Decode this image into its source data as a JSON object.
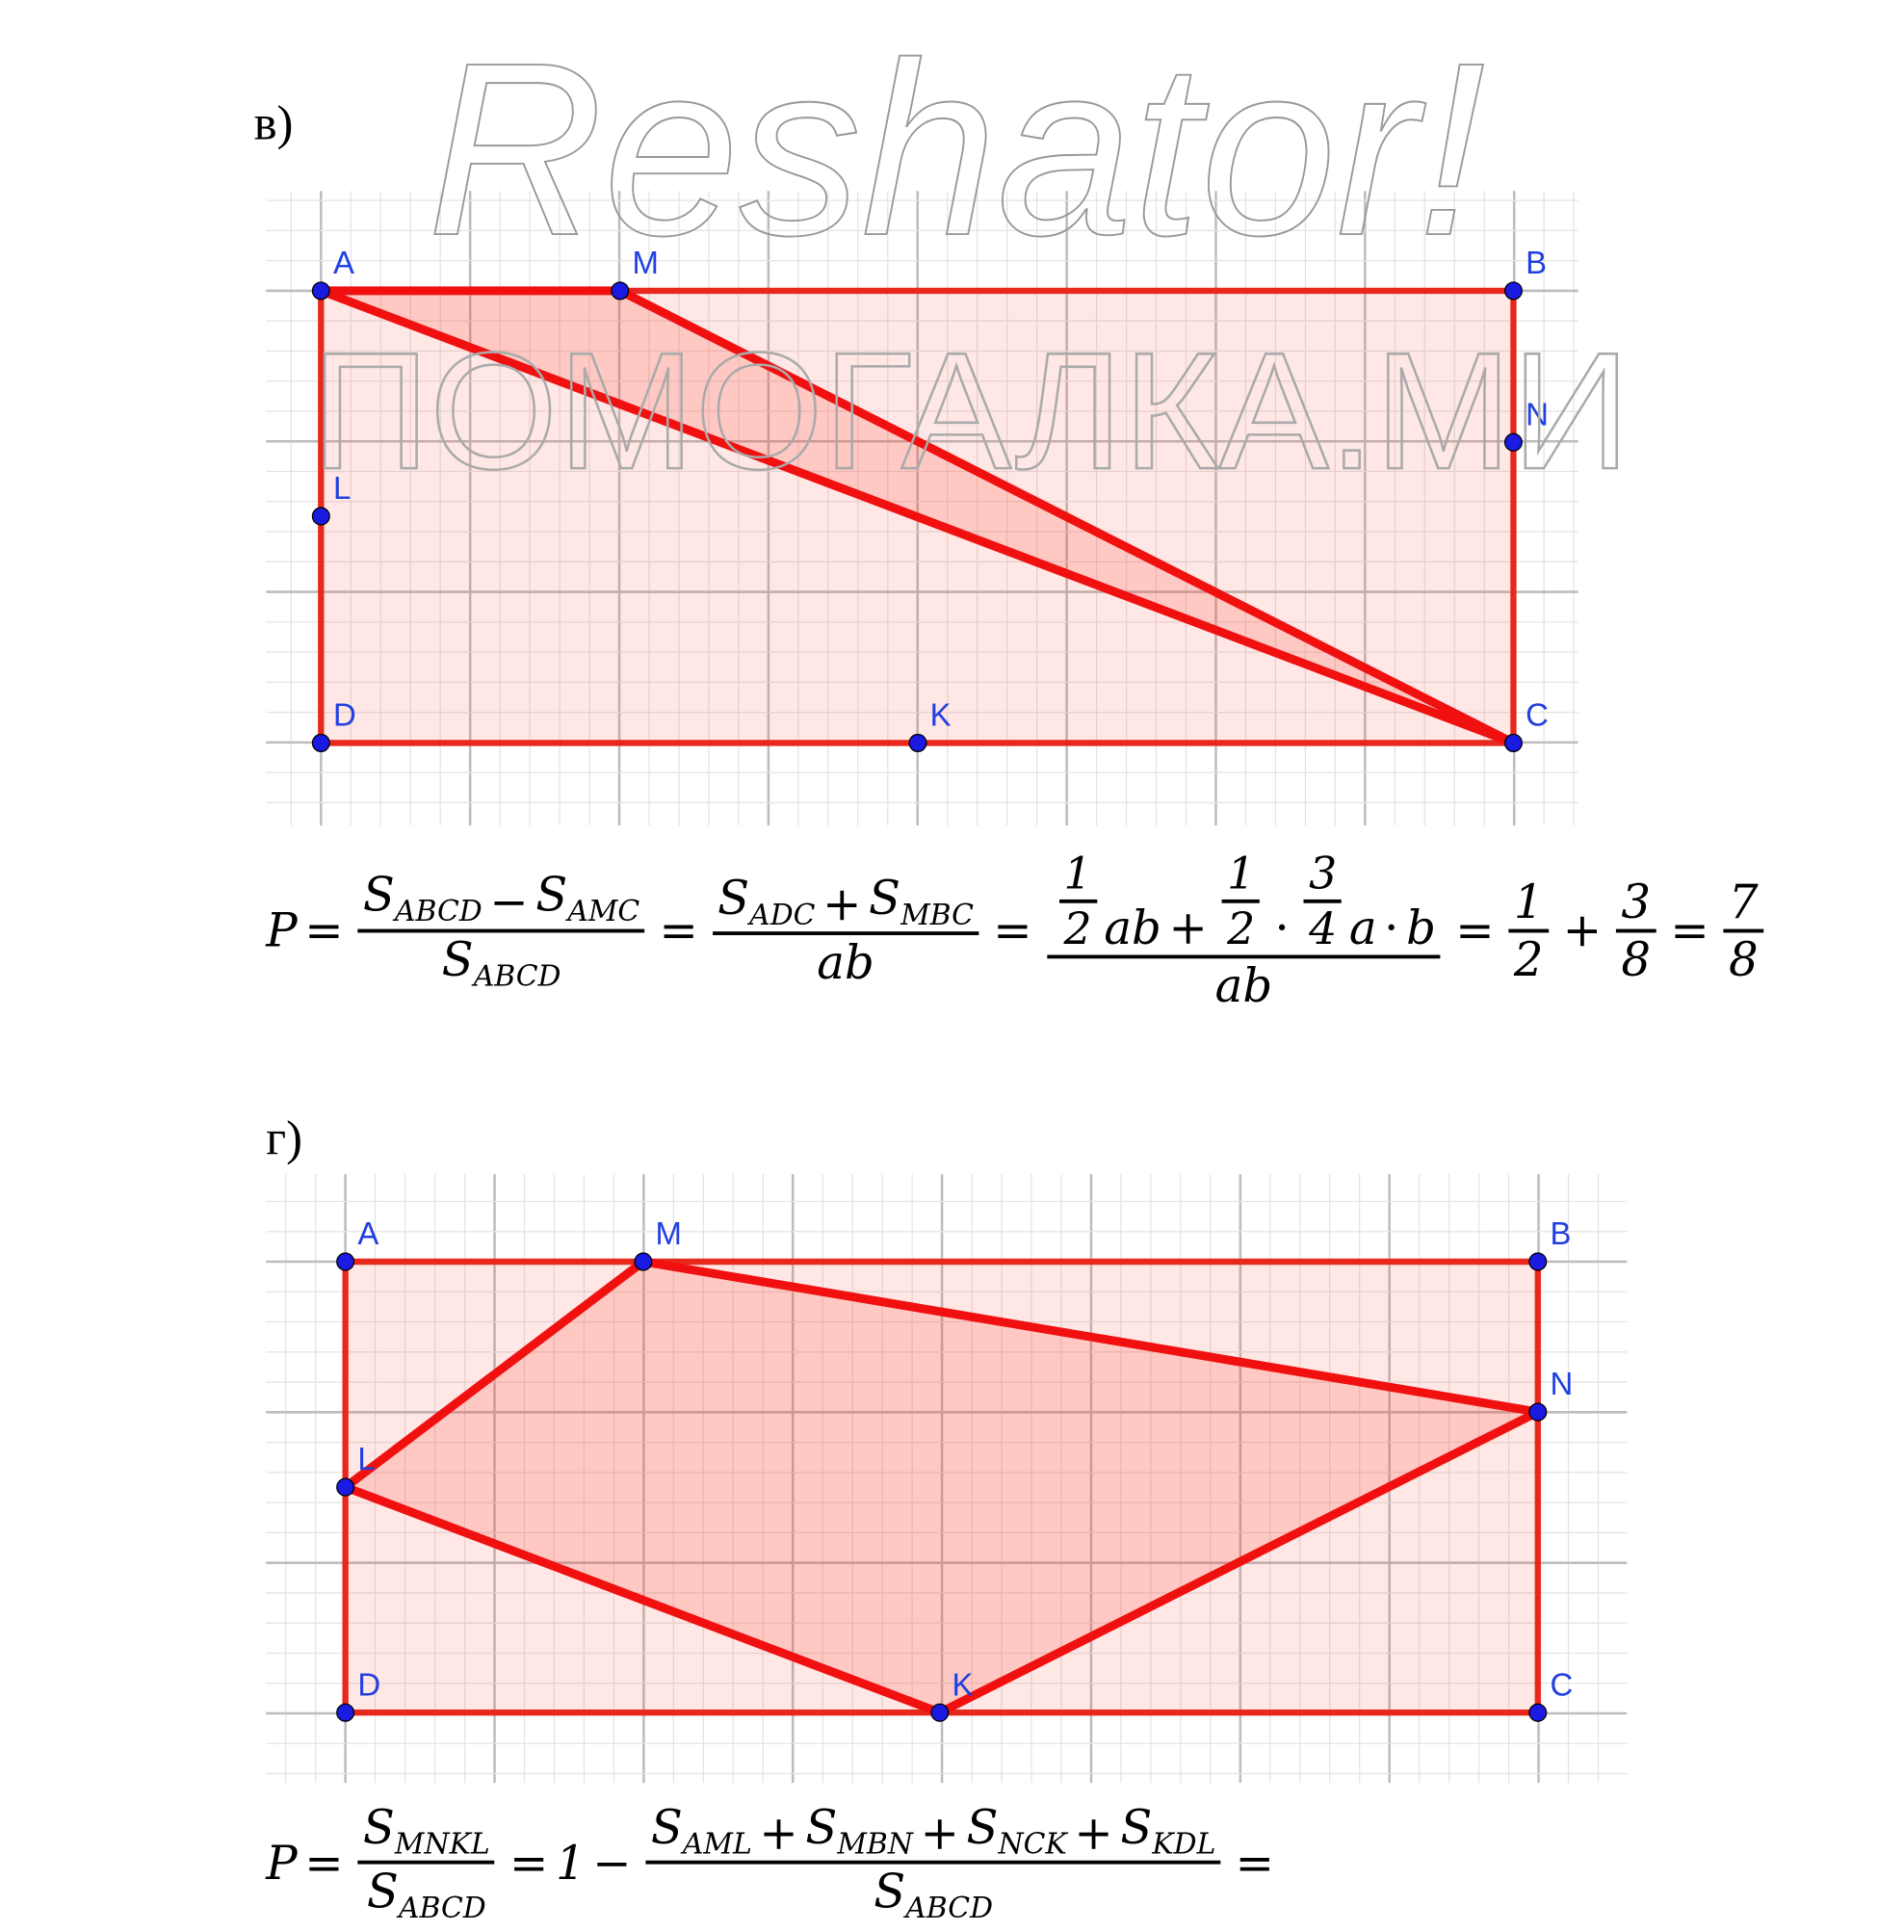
{
  "watermarks": [
    "Reshator!",
    "ПОМОГАЛКА.МИ"
  ],
  "sections": [
    {
      "label": "в)",
      "points": [
        "A",
        "M",
        "B",
        "N",
        "L",
        "D",
        "K",
        "C"
      ],
      "formula": [
        "P",
        "=",
        {
          "num": [
            {
              "base": "S",
              "sub": "ABCD"
            },
            "−",
            {
              "base": "S",
              "sub": "AMC"
            }
          ],
          "den": [
            {
              "base": "S",
              "sub": "ABCD"
            }
          ]
        },
        "=",
        {
          "num": [
            {
              "base": "S",
              "sub": "ADC"
            },
            "+",
            {
              "base": "S",
              "sub": "MBC"
            }
          ],
          "den": [
            "ab"
          ]
        },
        "=",
        {
          "num": [
            {
              "num": [
                "1"
              ],
              "den": [
                "2"
              ]
            },
            "ab",
            "+",
            {
              "num": [
                "1"
              ],
              "den": [
                "2"
              ]
            },
            "·",
            {
              "num": [
                "3"
              ],
              "den": [
                "4"
              ]
            },
            "a",
            "·",
            "b"
          ],
          "den": [
            "ab"
          ]
        },
        "=",
        {
          "num": [
            "1"
          ],
          "den": [
            "2"
          ]
        },
        "+",
        {
          "num": [
            "3"
          ],
          "den": [
            "8"
          ]
        },
        "=",
        {
          "num": [
            "7"
          ],
          "den": [
            "8"
          ]
        }
      ]
    },
    {
      "label": "г)",
      "points": [
        "A",
        "M",
        "B",
        "N",
        "L",
        "D",
        "K",
        "C"
      ],
      "formula": [
        "P",
        "=",
        {
          "num": [
            {
              "base": "S",
              "sub": "MNKL"
            }
          ],
          "den": [
            {
              "base": "S",
              "sub": "ABCD"
            }
          ]
        },
        "=",
        "1",
        "−",
        {
          "num": [
            {
              "base": "S",
              "sub": "AML"
            },
            "+",
            {
              "base": "S",
              "sub": "MBN"
            },
            "+",
            {
              "base": "S",
              "sub": "NCK"
            },
            "+",
            {
              "base": "S",
              "sub": "KDL"
            }
          ],
          "den": [
            {
              "base": "S",
              "sub": "ABCD"
            }
          ]
        },
        "="
      ]
    }
  ]
}
